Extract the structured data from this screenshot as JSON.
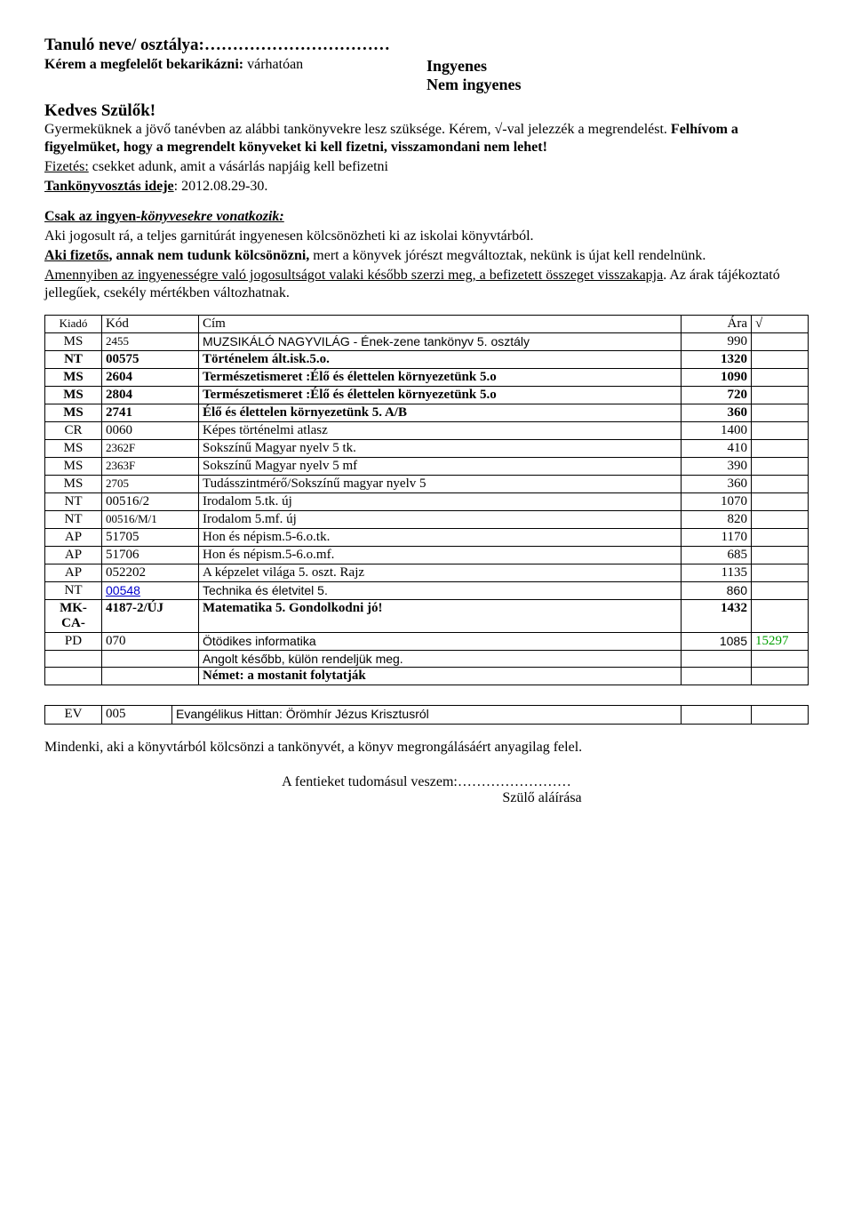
{
  "header": {
    "name_label": "Tanuló neve/ osztálya:",
    "circle_label": "Kérem a megfelelőt bekarikázni:",
    "circle_suffix": "várhatóan",
    "option1": "Ingyenes",
    "option2": "Nem ingyenes",
    "greeting": "Kedves Szülők!"
  },
  "para1": {
    "s1": "Gyermeküknek a jövő tanévben az alábbi tankönyvekre lesz szüksége. Kérem, √-val jelezzék a megrendelést. ",
    "s2": "Felhívom a figyelmüket, hogy a megrendelt könyveket ki kell fizetni, visszamondani nem lehet!",
    "s3a": "Fizetés:",
    "s3b": " csekket adunk, amit a vásárlás napjáig kell befizetni",
    "s4a": "Tankönyvosztás ideje",
    "s4b": ": 2012.08.29-30."
  },
  "para2": {
    "titleA": "Csak az ingyen",
    "titleB": "-könyvesekre vonatkozik:",
    "l1": "Aki jogosult rá, a teljes garnitúrát ingyenesen kölcsönözheti ki az iskolai könyvtárból.",
    "l2a": " Aki fizetős",
    "l2b": ", annak nem tudunk kölcsönözni,",
    "l2c": " mert a könyvek jórészt megváltoztak, nekünk is újat kell rendelnünk.",
    "l3a": " Amennyiben az ingyenességre való jogosultságot valaki később szerzi meg, a befizetett összeget visszakapja",
    "l3b": ". Az árak tájékoztató jellegűek, csekély mértékben változhatnak."
  },
  "table": {
    "headers": {
      "kiado": "Kiadó",
      "kod": "Kód",
      "cim": "Cím",
      "ara": "Ára",
      "check": "√"
    },
    "rows": [
      {
        "kiado": "MS",
        "kod": "2455",
        "cim": "MUZSIKÁLÓ NAGYVILÁG - Ének-zene tankönyv 5. osztály",
        "ara": "990",
        "bold": false,
        "kodSmall": true,
        "cimArial": true
      },
      {
        "kiado": "NT",
        "kod": "00575",
        "cim": "Történelem ált.isk.5.o.",
        "ara": "1320",
        "bold": true
      },
      {
        "kiado": "MS",
        "kod": "2604",
        "cim": "Természetismeret :Élő és élettelen környezetünk 5.o",
        "ara": "1090",
        "bold": true
      },
      {
        "kiado": "MS",
        "kod": "2804",
        "cim": "Természetismeret :Élő és élettelen környezetünk 5.o",
        "ara": "720",
        "bold": true
      },
      {
        "kiado": "MS",
        "kod": "2741",
        "cim": "Élő és élettelen környezetünk 5. A/B",
        "ara": "360",
        "bold": true
      },
      {
        "kiado": "CR",
        "kod": "0060",
        "cim": "Képes történelmi atlasz",
        "ara": "1400"
      },
      {
        "kiado": "MS",
        "kod": "2362F",
        "cim": "Sokszínű Magyar nyelv 5 tk.",
        "ara": "410",
        "kodSmall": true
      },
      {
        "kiado": "MS",
        "kod": "2363F",
        "cim": "Sokszínű Magyar nyelv 5 mf",
        "ara": "390",
        "kodSmall": true
      },
      {
        "kiado": "MS",
        "kod": "2705",
        "cim": "Tudásszintmérő/Sokszínű magyar nyelv 5",
        "ara": "360",
        "kodSmall": true
      },
      {
        "kiado": "NT",
        "kod": "00516/2",
        "cim": "Irodalom 5.tk. új",
        "ara": "1070"
      },
      {
        "kiado": "NT",
        "kod": "00516/M/1",
        "cim": "Irodalom 5.mf. új",
        "ara": "820",
        "kodSmall": true
      },
      {
        "kiado": "AP",
        "kod": "51705",
        "cim": "Hon és népism.5-6.o.tk.",
        "ara": "1170"
      },
      {
        "kiado": "AP",
        "kod": "51706",
        "cim": "Hon és népism.5-6.o.mf.",
        "ara": "685"
      },
      {
        "kiado": "AP",
        "kod": "052202",
        "cim": "A képzelet világa 5. oszt. Rajz",
        "ara": "1135"
      },
      {
        "kiado": "NT",
        "kod": "00548",
        "cim": "Technika és életvitel 5.",
        "ara": "860",
        "kodBlue": true,
        "cimArial": true,
        "araArial": true
      },
      {
        "kiado": "MK-CA-",
        "kod": "4187-2/ÚJ",
        "cim": "Matematika 5. Gondolkodni jó!",
        "ara": "1432",
        "bold": true
      },
      {
        "kiado": "PD",
        "kod": "070",
        "cim": "Ötödikes informatika",
        "ara": "1085",
        "check": "15297",
        "cimArial": true,
        "araArial": true,
        "checkGreen": true
      },
      {
        "kiado": "",
        "kod": "",
        "cim": "Angolt később, külön rendeljük meg.",
        "ara": "",
        "cimArial": true
      },
      {
        "kiado": "",
        "kod": "",
        "cim": "Német: a mostanit folytatják",
        "ara": "",
        "bold": true
      }
    ]
  },
  "table2": {
    "row": {
      "kiado": "EV",
      "kod": "005",
      "cim": "Evangélikus Hittan: Örömhír Jézus Krisztusról",
      "ara": ""
    }
  },
  "footer": {
    "line": "Mindenki, aki a könyvtárból kölcsönzi a tankönyvét, a könyv megrongálásáért anyagilag felel.",
    "sign1": "A fentieket tudomásul veszem:",
    "sign2": "Szülő aláírása"
  }
}
